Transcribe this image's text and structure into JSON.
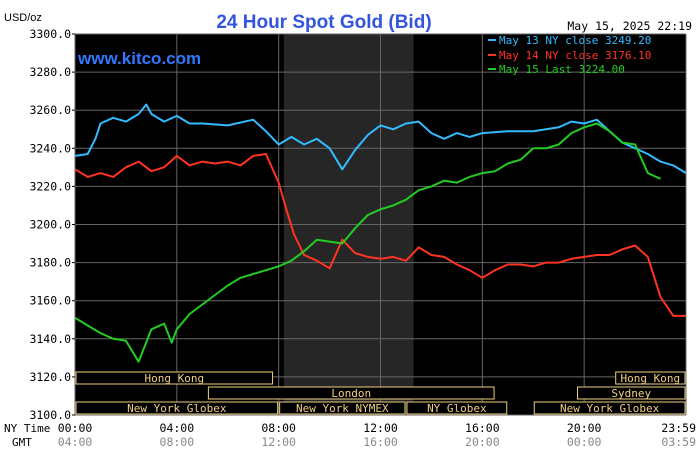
{
  "chart_data": {
    "type": "line",
    "title": "24 Hour Spot Gold (Bid)",
    "units_label": "USD/oz",
    "watermark": "www.kitco.com",
    "timestamp": "May 15, 2025 22:19",
    "ylim": [
      3100,
      3300
    ],
    "y_ticks": [
      "3300.0",
      "3280.0",
      "3260.0",
      "3240.0",
      "3220.0",
      "3200.0",
      "3180.0",
      "3160.0",
      "3140.0",
      "3120.0",
      "3100.0"
    ],
    "x_axis": {
      "row1_label": "NY Time",
      "row2_label": "GMT",
      "ny_ticks": [
        "00:00",
        "04:00",
        "08:00",
        "12:00",
        "16:00",
        "20:00",
        "23:59"
      ],
      "gmt_ticks": [
        "04:00",
        "08:00",
        "12:00",
        "16:00",
        "20:00",
        "00:00",
        "03:59"
      ],
      "x_hours": [
        0,
        4,
        8,
        12,
        16,
        20,
        24
      ]
    },
    "legend_position": "top-right",
    "series": [
      {
        "name": "May 13 NY close 3249.20",
        "color": "#33bbff",
        "x": [
          0,
          0.5,
          0.8,
          1.0,
          1.5,
          2.0,
          2.5,
          2.8,
          3.0,
          3.5,
          4.0,
          4.5,
          5.0,
          6.0,
          7.0,
          7.5,
          8.0,
          8.5,
          9.0,
          9.5,
          10.0,
          10.5,
          11.0,
          11.5,
          12.0,
          12.5,
          13.0,
          13.5,
          14.0,
          14.5,
          15.0,
          15.5,
          16.0,
          17.0,
          18.0,
          19.0,
          19.5,
          20.0,
          20.5,
          21.0,
          21.5,
          22.0,
          22.5,
          23.0,
          23.5,
          24.0
        ],
        "y": [
          3236,
          3237,
          3245,
          3253,
          3256,
          3254,
          3258,
          3263,
          3258,
          3254,
          3257,
          3253,
          3253,
          3252,
          3255,
          3249,
          3242,
          3246,
          3242,
          3245,
          3240,
          3229,
          3239,
          3247,
          3252,
          3250,
          3253,
          3254,
          3248,
          3245,
          3248,
          3246,
          3248,
          3249,
          3249,
          3251,
          3254,
          3253,
          3255,
          3249,
          3243,
          3240,
          3237,
          3233,
          3231,
          3227
        ]
      },
      {
        "name": "May 14 NY close 3176.10",
        "color": "#ff3322",
        "x": [
          0,
          0.5,
          1.0,
          1.5,
          2.0,
          2.5,
          3.0,
          3.5,
          4.0,
          4.5,
          5.0,
          5.5,
          6.0,
          6.5,
          7.0,
          7.5,
          8.0,
          8.3,
          8.6,
          9.0,
          9.5,
          10.0,
          10.5,
          11.0,
          11.5,
          12.0,
          12.5,
          13.0,
          13.5,
          14.0,
          14.5,
          15.0,
          15.5,
          16.0,
          16.5,
          17.0,
          17.5,
          18.0,
          18.5,
          19.0,
          19.5,
          20.0,
          20.5,
          21.0,
          21.5,
          22.0,
          22.5,
          23.0,
          23.5,
          24.0
        ],
        "y": [
          3229,
          3225,
          3227,
          3225,
          3230,
          3233,
          3228,
          3230,
          3236,
          3231,
          3233,
          3232,
          3233,
          3231,
          3236,
          3237,
          3222,
          3208,
          3195,
          3184,
          3181,
          3177,
          3192,
          3185,
          3183,
          3182,
          3183,
          3181,
          3188,
          3184,
          3183,
          3179,
          3176,
          3172,
          3176,
          3179,
          3179,
          3178,
          3180,
          3180,
          3182,
          3183,
          3184,
          3184,
          3187,
          3189,
          3183,
          3162,
          3152,
          3152
        ]
      },
      {
        "name": "May 15 Last 3224.00",
        "color": "#22cc22",
        "x": [
          0,
          0.5,
          1.0,
          1.5,
          2.0,
          2.5,
          3.0,
          3.5,
          3.8,
          4.0,
          4.5,
          5.0,
          5.5,
          6.0,
          6.5,
          7.0,
          7.5,
          8.0,
          8.5,
          9.0,
          9.5,
          10.0,
          10.5,
          11.0,
          11.5,
          12.0,
          12.5,
          13.0,
          13.5,
          14.0,
          14.5,
          15.0,
          15.5,
          16.0,
          16.5,
          17.0,
          17.5,
          18.0,
          18.5,
          19.0,
          19.5,
          20.0,
          20.5,
          21.0,
          21.5,
          22.0,
          22.5,
          23.0
        ],
        "y": [
          3151,
          3147,
          3143,
          3140,
          3139,
          3128,
          3145,
          3148,
          3138,
          3145,
          3153,
          3158,
          3163,
          3168,
          3172,
          3174,
          3176,
          3178,
          3181,
          3186,
          3192,
          3191,
          3190,
          3198,
          3205,
          3208,
          3210,
          3213,
          3218,
          3220,
          3223,
          3222,
          3225,
          3227,
          3228,
          3232,
          3234,
          3240,
          3240,
          3242,
          3248,
          3251,
          3253,
          3249,
          3243,
          3242,
          3227,
          3224
        ]
      }
    ],
    "sessions": [
      {
        "label": "Hong Kong",
        "row": 0,
        "start": 0,
        "end": 7.8
      },
      {
        "label": "Hong Kong",
        "row": 0,
        "start": 21.2,
        "end": 24
      },
      {
        "label": "London",
        "row": 1,
        "start": 5.2,
        "end": 16.5
      },
      {
        "label": "Sydney",
        "row": 1,
        "start": 19.7,
        "end": 24
      },
      {
        "label": "New York Globex",
        "row": 2,
        "start": 0,
        "end": 8.0
      },
      {
        "label": "New York NYMEX",
        "row": 2,
        "start": 8.0,
        "end": 13.0
      },
      {
        "label": "NY Globex",
        "row": 2,
        "start": 13.0,
        "end": 17.0
      },
      {
        "label": "New York Globex",
        "row": 2,
        "start": 18.0,
        "end": 24
      }
    ],
    "shaded_region": {
      "start_hour": 8.2,
      "end_hour": 13.3
    },
    "grid": true,
    "colors": {
      "background": "#000000",
      "grid": "#666666",
      "title": "#3355dd",
      "watermark": "#3377ff",
      "session_text": "#f0d080",
      "shaded": "#262626"
    }
  }
}
